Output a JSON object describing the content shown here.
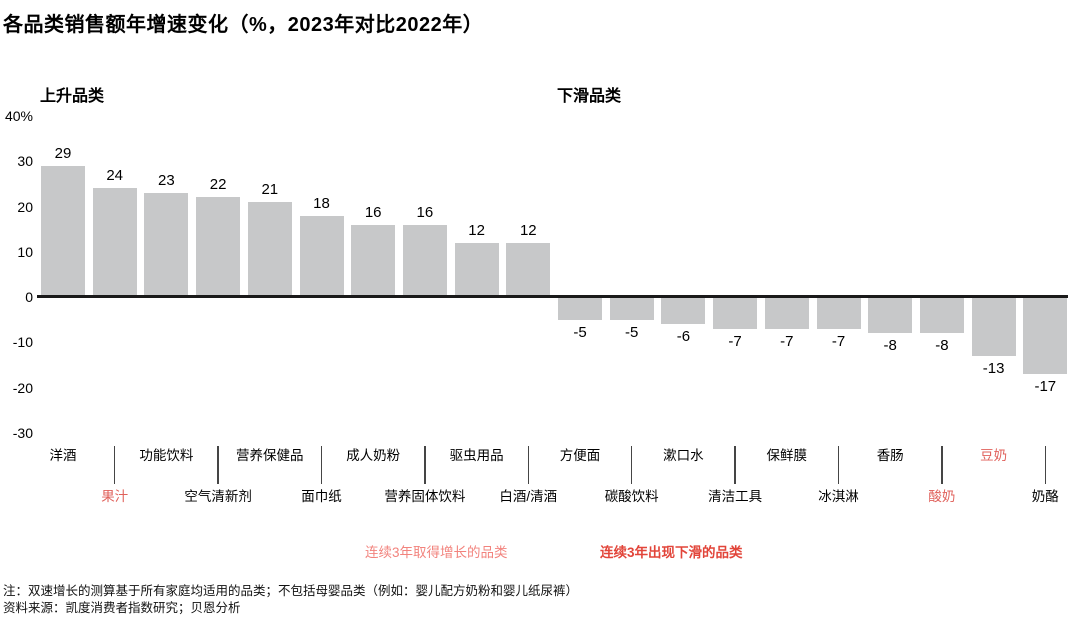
{
  "title": "各品类销售额年增速变化（%，2023年对比2022年）",
  "sections": {
    "rising": "上升品类",
    "declining": "下滑品类"
  },
  "legend": {
    "rising": "连续3年取得增长的品类",
    "declining": "连续3年出现下滑的品类"
  },
  "notes": [
    "注：双速增长的测算基于所有家庭均适用的品类；不包括母婴品类（例如：婴儿配方奶粉和婴儿纸尿裤）",
    "资料来源：凯度消费者指数研究；贝恩分析"
  ],
  "colors": {
    "bar": "#c7c8c9",
    "axis_line": "#1a1a1a",
    "leader_line": "#454545",
    "red_category_label": "#e0615b",
    "legend_rising": "#f2837d",
    "legend_declining": "#e2453a"
  },
  "chart_data": {
    "type": "bar",
    "title": "各品类销售额年增速变化（%，2023年对比2022年）",
    "xlabel": "",
    "ylabel": "%",
    "ylim": [
      -30,
      40
    ],
    "grid": false,
    "legend_position": "bottom",
    "categories": [
      "洋酒",
      "果汁",
      "功能饮料",
      "空气清新剂",
      "营养保健品",
      "面巾纸",
      "成人奶粉",
      "营养固体饮料",
      "驱虫用品",
      "白酒/清酒",
      "方便面",
      "碳酸饮料",
      "漱口水",
      "清洁工具",
      "保鲜膜",
      "冰淇淋",
      "香肠",
      "酸奶",
      "豆奶",
      "奶酪"
    ],
    "values": [
      29,
      24,
      23,
      22,
      21,
      18,
      16,
      16,
      12,
      12,
      -5,
      -5,
      -6,
      -7,
      -7,
      -7,
      -8,
      -8,
      -13,
      -17
    ],
    "red_categories": [
      "果汁",
      "酸奶",
      "豆奶"
    ],
    "rising_group_label": "上升品类",
    "declining_group_label": "下滑品类",
    "yticks": [
      {
        "label": "40%",
        "value": 40
      },
      {
        "label": "30",
        "value": 30
      },
      {
        "label": "20",
        "value": 20
      },
      {
        "label": "10",
        "value": 10
      },
      {
        "label": "0",
        "value": 0
      },
      {
        "label": "-10",
        "value": -10
      },
      {
        "label": "-20",
        "value": -20
      },
      {
        "label": "-30",
        "value": -30
      }
    ]
  }
}
